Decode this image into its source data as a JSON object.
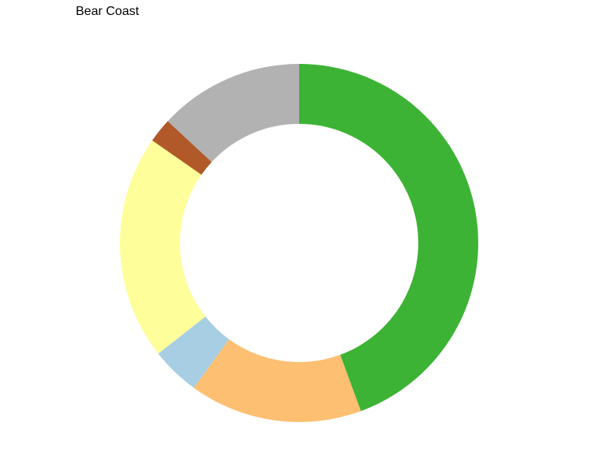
{
  "chart_data": {
    "type": "pie",
    "title": "Bear Coast",
    "donut": true,
    "start_angle_deg": 0,
    "direction": "clockwise",
    "legend": "none",
    "slices": [
      {
        "value": 44.4,
        "color": "#3cb334"
      },
      {
        "value": 15.6,
        "color": "#fdbf71"
      },
      {
        "value": 4.4,
        "color": "#a7cee3"
      },
      {
        "value": 20.3,
        "color": "#feff9a"
      },
      {
        "value": 2.2,
        "color": "#b15928"
      },
      {
        "value": 13.1,
        "color": "#b2b2b2"
      }
    ]
  }
}
